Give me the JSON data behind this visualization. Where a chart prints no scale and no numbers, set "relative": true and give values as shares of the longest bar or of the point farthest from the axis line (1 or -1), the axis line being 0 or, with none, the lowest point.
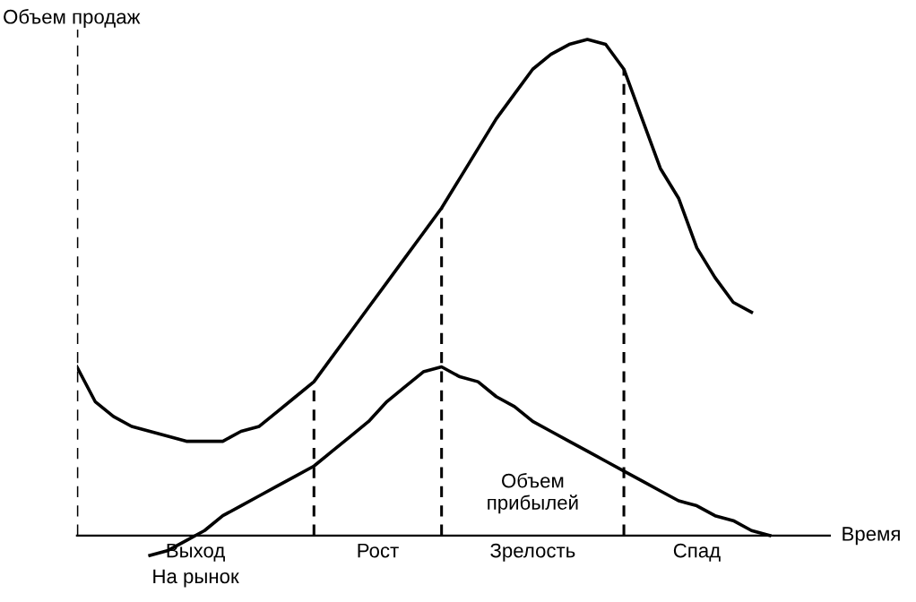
{
  "chart_data": {
    "type": "line",
    "relative": true,
    "title": "Объем продаж",
    "xlabel": "Время",
    "line_style": "solid",
    "categories": [
      null,
      null,
      null,
      null,
      null,
      null,
      null,
      null,
      null,
      null,
      null,
      null,
      null,
      null,
      null,
      null,
      null,
      null,
      null,
      null,
      null,
      null,
      null,
      null,
      null,
      null,
      null,
      null,
      null,
      null,
      null,
      null,
      null,
      null,
      null,
      null,
      null,
      null,
      null
    ],
    "series": [
      {
        "color": "#000000",
        "values": [
          0.34,
          0.27,
          0.24,
          0.22,
          0.21,
          0.2,
          0.19,
          0.19,
          0.19,
          0.21,
          0.22,
          0.25,
          0.28,
          0.31,
          0.36,
          0.41,
          0.46,
          0.51,
          0.56,
          0.61,
          0.66,
          0.72,
          0.78,
          0.84,
          0.89,
          0.94,
          0.97,
          0.99,
          1.0,
          0.99,
          0.94,
          0.84,
          0.74,
          0.68,
          0.58,
          0.52,
          0.47,
          0.45,
          null
        ]
      },
      {
        "name": "Объем\nприбылей",
        "color": "#000000",
        "values": [
          null,
          null,
          null,
          null,
          -0.04,
          -0.03,
          -0.01,
          0.01,
          0.04,
          0.06,
          0.08,
          0.1,
          0.12,
          0.14,
          0.17,
          0.2,
          0.23,
          0.27,
          0.3,
          0.33,
          0.34,
          0.32,
          0.31,
          0.28,
          0.26,
          0.23,
          0.21,
          0.19,
          0.17,
          0.15,
          0.13,
          0.11,
          0.09,
          0.07,
          0.06,
          0.04,
          0.03,
          0.01,
          0.0
        ]
      }
    ],
    "annotations": [
      "Выход\nНа рынок",
      "Рост",
      "Зрелость",
      "Спад"
    ]
  }
}
